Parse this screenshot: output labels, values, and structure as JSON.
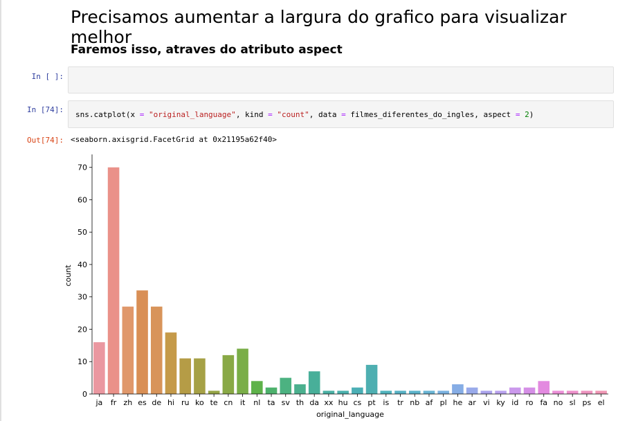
{
  "markdown": {
    "heading1": "Precisamos aumentar a largura do grafico para visualizar melhor",
    "heading3": "Faremos isso, atraves do atributo aspect"
  },
  "cells": {
    "empty_prompt": "In [ ]:",
    "code_prompt": "In [74]:",
    "code": {
      "p1": "sns.catplot(x ",
      "eq1": "=",
      "p2": " ",
      "s1": "\"original_language\"",
      "p3": ", kind ",
      "eq2": "=",
      "p4": " ",
      "s2": "\"count\"",
      "p5": ", data ",
      "eq3": "=",
      "p6": " filmes_diferentes_do_ingles, aspect ",
      "eq4": "=",
      "p7": " ",
      "n1": "2",
      "p8": ")"
    },
    "out_prompt": "Out[74]:",
    "output_text": "<seaborn.axisgrid.FacetGrid at 0x21195a62f40>"
  },
  "chart_data": {
    "type": "bar",
    "xlabel": "original_language",
    "ylabel": "count",
    "ylim": [
      0,
      74
    ],
    "yticks": [
      0,
      10,
      20,
      30,
      40,
      50,
      60,
      70
    ],
    "categories": [
      "ja",
      "fr",
      "zh",
      "es",
      "de",
      "hi",
      "ru",
      "ko",
      "te",
      "cn",
      "it",
      "nl",
      "ta",
      "sv",
      "th",
      "da",
      "xx",
      "hu",
      "cs",
      "pt",
      "is",
      "tr",
      "nb",
      "af",
      "pl",
      "he",
      "ar",
      "vi",
      "ky",
      "id",
      "ro",
      "fa",
      "no",
      "sl",
      "ps",
      "el"
    ],
    "values": [
      16,
      70,
      27,
      32,
      27,
      19,
      11,
      11,
      1,
      12,
      14,
      4,
      2,
      5,
      3,
      7,
      1,
      1,
      2,
      9,
      1,
      1,
      1,
      1,
      1,
      3,
      2,
      1,
      1,
      2,
      2,
      4,
      1,
      1,
      1,
      1
    ],
    "colors": [
      "#ea97a0",
      "#ea9189",
      "#e0986b",
      "#d98f55",
      "#d8945a",
      "#c59a49",
      "#b59c46",
      "#a6a146",
      "#95a546",
      "#89a946",
      "#7aae48",
      "#5eb24a",
      "#4db16c",
      "#4cb281",
      "#4bb08e",
      "#48af99",
      "#4ab0a4",
      "#4bb0ac",
      "#4bafb5",
      "#4eafb1",
      "#51b3bd",
      "#57b1c4",
      "#5cb3ca",
      "#69b4d3",
      "#7ab1df",
      "#86ade5",
      "#99aaea",
      "#aba4ec",
      "#b9a3ee",
      "#cb99ec",
      "#d58fe6",
      "#e38ae0",
      "#eb8fd7",
      "#ed91cb",
      "#ed93bf",
      "#ef97b5"
    ],
    "grid": false
  }
}
